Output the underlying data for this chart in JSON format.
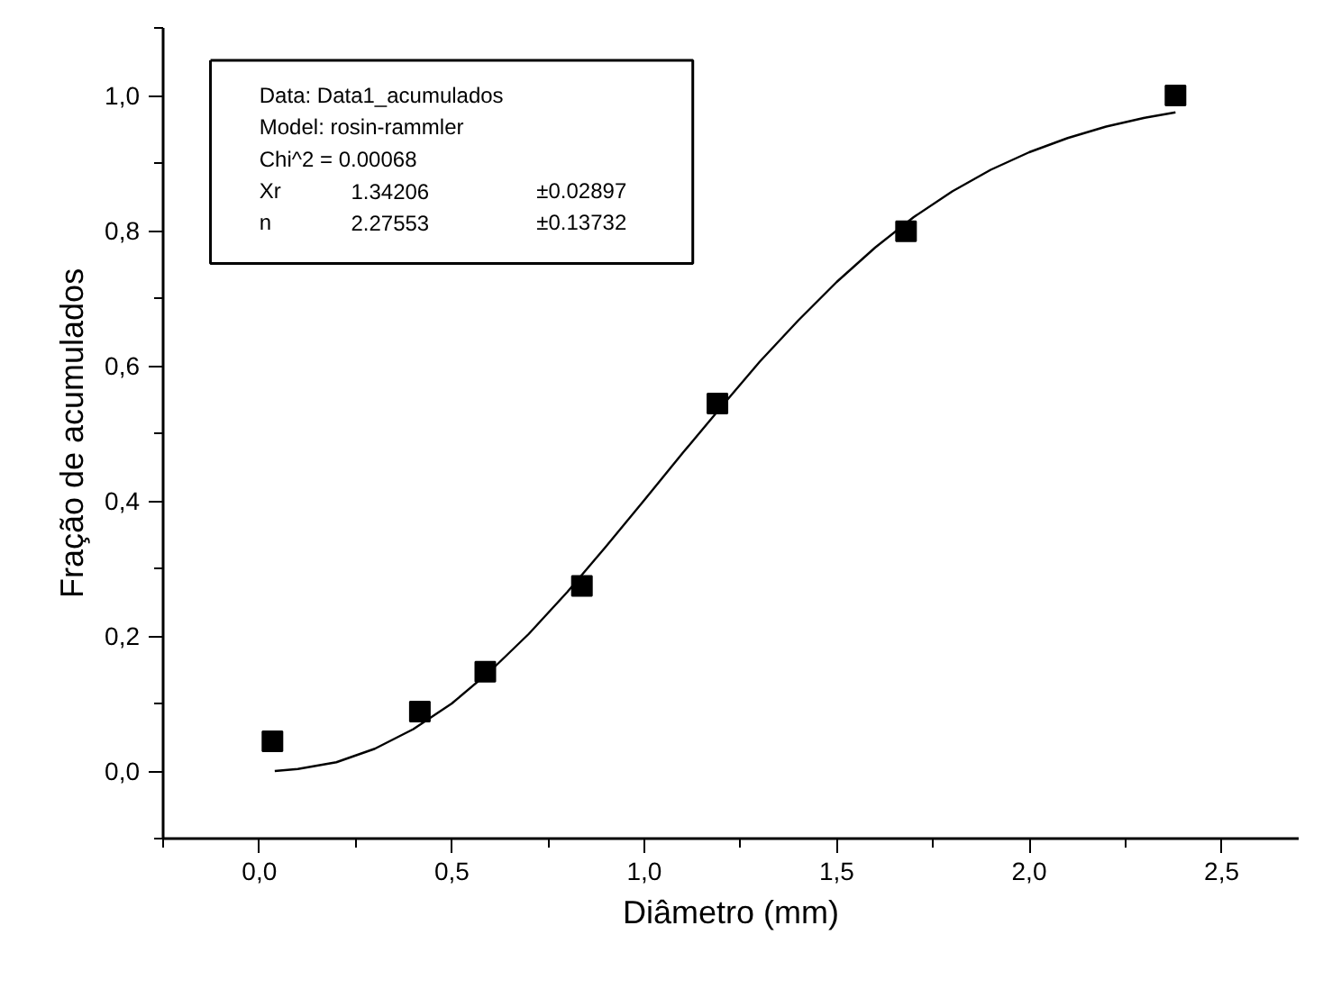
{
  "chart_data": {
    "type": "scatter",
    "xlabel": "Diâmetro (mm)",
    "ylabel": "Fração de acumulados",
    "xlim": [
      -0.25,
      2.7
    ],
    "ylim": [
      -0.1,
      1.1
    ],
    "xticks": [
      {
        "value": 0,
        "label": "0,0"
      },
      {
        "value": 0.5,
        "label": "0,5"
      },
      {
        "value": 1.0,
        "label": "1,0"
      },
      {
        "value": 1.5,
        "label": "1,5"
      },
      {
        "value": 2.0,
        "label": "2,0"
      },
      {
        "value": 2.5,
        "label": "2,5"
      }
    ],
    "yticks": [
      {
        "value": 0,
        "label": "0,0"
      },
      {
        "value": 0.2,
        "label": "0,2"
      },
      {
        "value": 0.4,
        "label": "0,4"
      },
      {
        "value": 0.6,
        "label": "0,6"
      },
      {
        "value": 0.8,
        "label": "0,8"
      },
      {
        "value": 1.0,
        "label": "1,0"
      }
    ],
    "grid": false,
    "series": [
      {
        "color": "#000000",
        "marker": "square",
        "x": [
          0.034,
          0.417,
          0.587,
          0.838,
          1.19,
          1.68,
          2.38
        ],
        "values": [
          0.044,
          0.088,
          0.147,
          0.274,
          0.544,
          0.799,
          1.0
        ]
      },
      {
        "type": "line",
        "color": "#000000",
        "x": [
          0.04,
          0.1,
          0.2,
          0.3,
          0.4,
          0.5,
          0.6,
          0.7,
          0.8,
          0.9,
          1.0,
          1.1,
          1.2,
          1.3,
          1.4,
          1.5,
          1.6,
          1.7,
          1.8,
          1.9,
          2.0,
          2.1,
          2.2,
          2.3,
          2.38
        ],
        "values": [
          0.0,
          0.003,
          0.013,
          0.033,
          0.062,
          0.1,
          0.148,
          0.203,
          0.265,
          0.332,
          0.401,
          0.471,
          0.539,
          0.606,
          0.667,
          0.724,
          0.775,
          0.82,
          0.858,
          0.89,
          0.916,
          0.937,
          0.954,
          0.967,
          0.975
        ]
      }
    ],
    "annotations": [
      "Data: Data1_acumulados",
      "Model: rosin-rammler",
      "Chi^2 = 0.00068",
      "Xr\t1.34206\t±0.02897",
      "n\t2.27553\t±0.13732"
    ]
  }
}
